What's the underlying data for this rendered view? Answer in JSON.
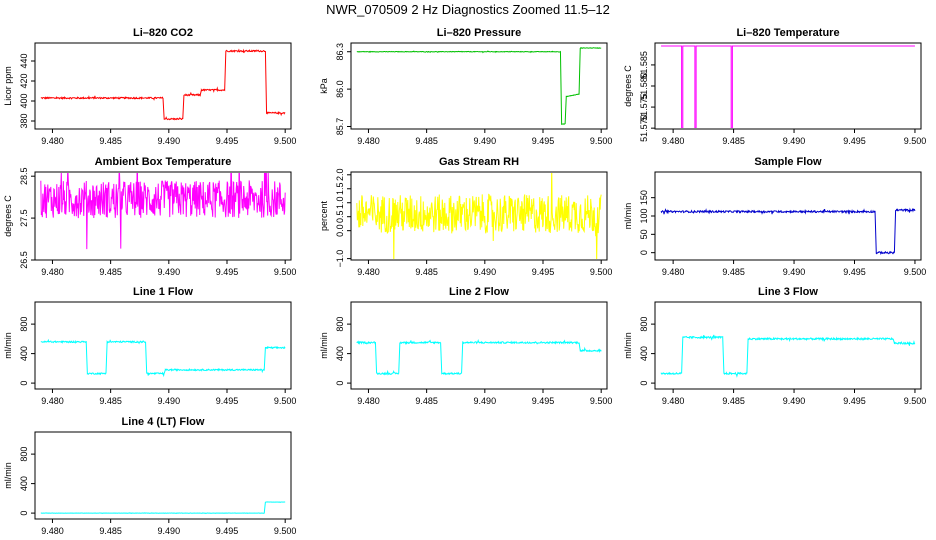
{
  "page_title": "NWR_070509  2 Hz Diagnostics Zoomed 11.5–12",
  "chart_data": [
    {
      "type": "line",
      "title": "Li–820 CO2",
      "ylabel": "Licor ppm",
      "color": "#ff0000",
      "noise": 1.5,
      "xlim": [
        9.4785,
        9.5005
      ],
      "ylim": [
        372,
        458
      ],
      "yticks": [
        380,
        400,
        420,
        440
      ],
      "x_ticks": [
        "9.480",
        "9.485",
        "9.490",
        "9.495",
        "9.500"
      ],
      "series": [
        {
          "x": [
            9.479,
            9.4895,
            9.4896,
            9.4912,
            9.4913,
            9.4927,
            9.4928,
            9.4948,
            9.4949,
            9.4983,
            9.4984,
            9.5
          ],
          "y": [
            403,
            403,
            382,
            382,
            406,
            406,
            411,
            411,
            450,
            450,
            388,
            388
          ]
        }
      ]
    },
    {
      "type": "line",
      "title": "Li–820 Pressure",
      "ylabel": "kPa",
      "color": "#00c000",
      "noise": 0.004,
      "xlim": [
        9.4785,
        9.5005
      ],
      "ylim": [
        85.68,
        86.37
      ],
      "yticks": [
        85.7,
        86.0,
        86.3
      ],
      "ytick_labels": [
        "85.7",
        "86.0",
        "86.3"
      ],
      "x_ticks": [
        "9.480",
        "9.485",
        "9.490",
        "9.495",
        "9.500"
      ],
      "series": [
        {
          "x": [
            9.479,
            9.4965,
            9.4966,
            9.4969,
            9.497,
            9.4981,
            9.4982,
            9.4984,
            9.5
          ],
          "y": [
            86.3,
            86.3,
            85.72,
            85.72,
            85.94,
            85.96,
            86.33,
            86.33,
            86.33
          ],
          "dy": [
            0,
            0,
            0,
            0,
            0,
            0,
            0,
            0,
            0
          ]
        }
      ]
    },
    {
      "type": "line",
      "title": "Li–820 Temperature",
      "ylabel": "degrees C",
      "color": "#ff00ff",
      "noise": 0,
      "xlim": [
        9.4785,
        9.5005
      ],
      "ylim": [
        51.5698,
        51.5902
      ],
      "yticks": [
        51.57,
        51.575,
        51.58,
        51.585
      ],
      "ytick_labels": [
        "51.570",
        "51.575",
        "51.580",
        "51.585"
      ],
      "x_ticks": [
        "9.480",
        "9.485",
        "9.490",
        "9.495",
        "9.500"
      ],
      "series": [
        {
          "x": [
            9.479,
            9.4807,
            9.4807,
            9.4808,
            9.4808,
            9.4818,
            9.4818,
            9.4819,
            9.4819,
            9.4848,
            9.4848,
            9.4849,
            9.4849,
            9.5
          ],
          "y": [
            51.5895,
            51.5895,
            51.57,
            51.57,
            51.5895,
            51.5895,
            51.57,
            51.57,
            51.5895,
            51.5895,
            51.57,
            51.57,
            51.5895,
            51.5895
          ]
        }
      ]
    },
    {
      "type": "line",
      "title": "Ambient Box Temperature",
      "ylabel": "degrees C",
      "color": "#ff00ff",
      "noise": 0.9,
      "xlim": [
        9.4785,
        9.5005
      ],
      "ylim": [
        26.5,
        28.6
      ],
      "yticks": [
        26.5,
        27.5,
        28.5
      ],
      "ytick_labels": [
        "26.5",
        "27.5",
        "28.5"
      ],
      "x_ticks": [
        "9.480",
        "9.485",
        "9.490",
        "9.495",
        "9.500"
      ],
      "series": [
        {
          "x": [
            9.479,
            9.5
          ],
          "y": [
            27.95,
            27.95
          ]
        }
      ]
    },
    {
      "type": "line",
      "title": "Gas Stream RH",
      "ylabel": "percent",
      "color": "#ffff00",
      "noise": 1.4,
      "xlim": [
        9.4785,
        9.5005
      ],
      "ylim": [
        -1.05,
        2.1
      ],
      "yticks": [
        -1.0,
        0.0,
        0.5,
        1.0,
        1.5,
        2.0
      ],
      "ytick_labels": [
        "−1.0",
        "0.0",
        "0.5",
        "1.0",
        "1.5",
        "2.0"
      ],
      "x_ticks": [
        "9.480",
        "9.485",
        "9.490",
        "9.495",
        "9.500"
      ],
      "series": [
        {
          "x": [
            9.479,
            9.5
          ],
          "y": [
            0.6,
            0.6
          ]
        }
      ]
    },
    {
      "type": "line",
      "title": "Sample Flow",
      "ylabel": "ml/min",
      "color": "#0000cc",
      "noise": 5,
      "xlim": [
        9.4785,
        9.5005
      ],
      "ylim": [
        -20,
        220
      ],
      "yticks": [
        0,
        50,
        100,
        150
      ],
      "x_ticks": [
        "9.480",
        "9.485",
        "9.490",
        "9.495",
        "9.500"
      ],
      "series": [
        {
          "x": [
            9.479,
            9.4967,
            9.4968,
            9.4983,
            9.4984,
            9.5
          ],
          "y": [
            112,
            112,
            0,
            0,
            116,
            116
          ]
        }
      ]
    },
    {
      "type": "line",
      "title": "Line 1 Flow",
      "ylabel": "ml/min",
      "color": "#00ffff",
      "noise": 20,
      "xlim": [
        9.4785,
        9.5005
      ],
      "ylim": [
        -80,
        1100
      ],
      "yticks": [
        0,
        400,
        800
      ],
      "x_ticks": [
        "9.480",
        "9.485",
        "9.490",
        "9.495",
        "9.500"
      ],
      "series": [
        {
          "x": [
            9.479,
            9.4829,
            9.483,
            9.4846,
            9.4847,
            9.488,
            9.4881,
            9.4896,
            9.4897,
            9.4982,
            9.4983,
            9.5
          ],
          "y": [
            560,
            560,
            130,
            130,
            560,
            560,
            130,
            130,
            180,
            180,
            480,
            480
          ]
        }
      ]
    },
    {
      "type": "line",
      "title": "Line 2 Flow",
      "ylabel": "ml/min",
      "color": "#00ffff",
      "noise": 22,
      "xlim": [
        9.4785,
        9.5005
      ],
      "ylim": [
        -80,
        1100
      ],
      "yticks": [
        0,
        400,
        800
      ],
      "x_ticks": [
        "9.480",
        "9.485",
        "9.490",
        "9.495",
        "9.500"
      ],
      "series": [
        {
          "x": [
            9.479,
            9.4806,
            9.4807,
            9.4826,
            9.4827,
            9.4862,
            9.4863,
            9.488,
            9.4881,
            9.4981,
            9.4982,
            9.5
          ],
          "y": [
            550,
            550,
            130,
            130,
            550,
            550,
            130,
            130,
            550,
            550,
            440,
            440
          ]
        }
      ]
    },
    {
      "type": "line",
      "title": "Line 3 Flow",
      "ylabel": "ml/min",
      "color": "#00ffff",
      "noise": 24,
      "xlim": [
        9.4785,
        9.5005
      ],
      "ylim": [
        -80,
        1100
      ],
      "yticks": [
        0,
        400,
        800
      ],
      "x_ticks": [
        "9.480",
        "9.485",
        "9.490",
        "9.495",
        "9.500"
      ],
      "series": [
        {
          "x": [
            9.479,
            9.4807,
            9.4808,
            9.4841,
            9.4842,
            9.4861,
            9.4862,
            9.4982,
            9.4983,
            9.5
          ],
          "y": [
            130,
            130,
            620,
            620,
            130,
            130,
            600,
            600,
            540,
            540
          ]
        }
      ]
    },
    {
      "type": "line",
      "title": "Line 4 (LT) Flow",
      "ylabel": "ml/min",
      "color": "#00ffff",
      "noise": 3,
      "xlim": [
        9.4785,
        9.5005
      ],
      "ylim": [
        -80,
        1100
      ],
      "yticks": [
        0,
        400,
        800
      ],
      "x_ticks": [
        "9.480",
        "9.485",
        "9.490",
        "9.495",
        "9.500"
      ],
      "series": [
        {
          "x": [
            9.479,
            9.4982,
            9.4983,
            9.5
          ],
          "y": [
            0,
            0,
            150,
            150
          ]
        }
      ]
    }
  ]
}
